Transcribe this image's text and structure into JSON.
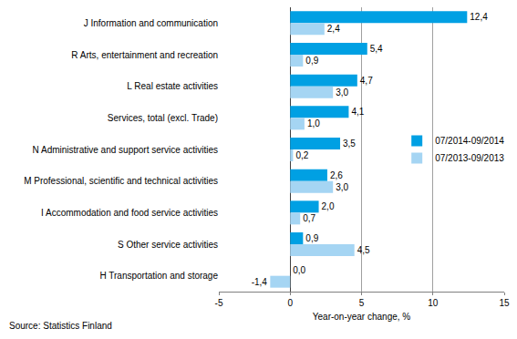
{
  "chart_data": {
    "type": "bar",
    "orientation": "horizontal",
    "categories": [
      "J Information and communication",
      "R Arts, entertainment and recreation",
      "L Real estate activities",
      "Services, total (excl. Trade)",
      "N Administrative and support service activities",
      "M Professional, scientific and technical activities",
      "I Accommodation and food service activities",
      "S Other service activities",
      "H Transportation and storage"
    ],
    "series": [
      {
        "name": "07/2014-09/2014",
        "color": "#00a0e3",
        "values": [
          12.4,
          5.4,
          4.7,
          4.1,
          3.5,
          2.6,
          2.0,
          0.9,
          0.0
        ],
        "value_labels": [
          "12,4",
          "5,4",
          "4,7",
          "4,1",
          "3,5",
          "2,6",
          "2,0",
          "0,9",
          "0,0"
        ]
      },
      {
        "name": "07/2013-09/2013",
        "color": "#a5d5f3",
        "values": [
          2.4,
          0.9,
          3.0,
          1.0,
          0.2,
          3.0,
          0.7,
          4.5,
          -1.4
        ],
        "value_labels": [
          "2,4",
          "0,9",
          "3,0",
          "1,0",
          "0,2",
          "3,0",
          "0,7",
          "4,5",
          "-1,4"
        ]
      }
    ],
    "xlabel": "Year-on-year change, %",
    "xlim": [
      -5,
      15
    ],
    "xticks": [
      -5,
      0,
      5,
      10,
      15
    ],
    "grid": true,
    "legend": "right",
    "data_labels": true,
    "annotations": [
      "Source: Statistics Finland"
    ]
  }
}
